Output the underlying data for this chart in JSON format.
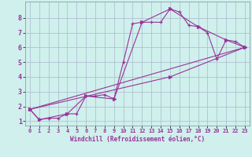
{
  "xlabel": "Windchill (Refroidissement éolien,°C)",
  "background_color": "#cff0ec",
  "grid_color": "#aab8cc",
  "line_color": "#993399",
  "xlim": [
    -0.5,
    23.5
  ],
  "ylim": [
    0.7,
    9.1
  ],
  "yticks": [
    1,
    2,
    3,
    4,
    5,
    6,
    7,
    8
  ],
  "xticks": [
    0,
    1,
    2,
    3,
    4,
    5,
    6,
    7,
    8,
    9,
    10,
    11,
    12,
    13,
    14,
    15,
    16,
    17,
    18,
    19,
    20,
    21,
    22,
    23
  ],
  "series1_x": [
    0,
    1,
    2,
    3,
    4,
    5,
    6,
    7,
    8,
    9,
    10,
    11,
    12,
    13,
    14,
    15,
    16,
    17,
    18,
    19,
    20,
    21,
    22,
    23
  ],
  "series1_y": [
    1.8,
    1.1,
    1.2,
    1.2,
    1.5,
    1.5,
    2.7,
    2.7,
    2.8,
    2.5,
    5.0,
    7.6,
    7.7,
    7.7,
    7.7,
    8.6,
    8.4,
    7.5,
    7.4,
    7.0,
    5.2,
    6.5,
    6.4,
    6.0
  ],
  "series2_x": [
    0,
    1,
    4,
    6,
    9,
    12,
    15,
    18,
    21,
    23
  ],
  "series2_y": [
    1.8,
    1.1,
    1.5,
    2.7,
    2.5,
    7.7,
    8.6,
    7.4,
    6.5,
    6.0
  ],
  "series3_x": [
    0,
    23
  ],
  "series3_y": [
    1.8,
    6.0
  ],
  "series4_x": [
    0,
    15,
    23
  ],
  "series4_y": [
    1.8,
    4.0,
    6.0
  ]
}
